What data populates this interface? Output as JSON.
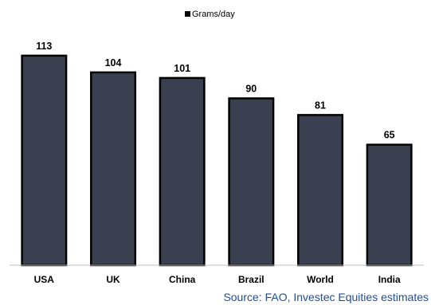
{
  "chart_data": {
    "type": "bar",
    "categories": [
      "USA",
      "UK",
      "China",
      "Brazil",
      "World",
      "India"
    ],
    "series": [
      {
        "name": "Grams/day",
        "values": [
          113,
          104,
          101,
          90,
          81,
          65
        ]
      }
    ],
    "data_labels": [
      "113",
      "104",
      "101",
      "90",
      "81",
      "65"
    ],
    "title": "",
    "xlabel": "",
    "ylabel": "",
    "ylim": [
      0,
      125
    ],
    "grid": false,
    "legend": {
      "position": "top-center",
      "entries": [
        "Grams/day"
      ]
    },
    "colors": {
      "bar_fill": "#3a4050",
      "bar_stroke": "#000000",
      "legend_marker": "#000000"
    }
  },
  "source": "Source: FAO, Investec Equities estimates"
}
